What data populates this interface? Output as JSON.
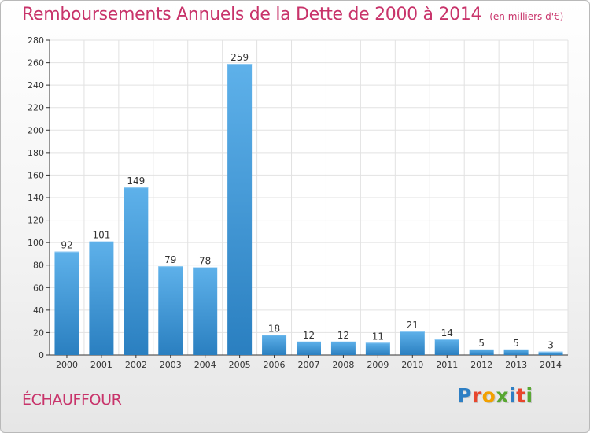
{
  "header": {
    "title": "Remboursements Annuels de la Dette de 2000 à 2014",
    "unit": "(en milliers d'€)"
  },
  "footer": {
    "commune": "ÉCHAUFFOUR",
    "logo_text": "Proxiti",
    "logo_letters": [
      {
        "ch": "P",
        "color": "#2e7fc4"
      },
      {
        "ch": "r",
        "color": "#e8462d"
      },
      {
        "ch": "o",
        "color": "#f2a100"
      },
      {
        "ch": "x",
        "color": "#58a731"
      },
      {
        "ch": "i",
        "color": "#2e7fc4"
      },
      {
        "ch": "t",
        "color": "#e8462d"
      },
      {
        "ch": "i",
        "color": "#58a731"
      }
    ]
  },
  "colors": {
    "title": "#c8336a",
    "bar_light": "#5eb1ea",
    "bar_dark": "#2a7fc0",
    "grid": "#e2e2e2",
    "axis": "#333333"
  },
  "chart_data": {
    "type": "bar",
    "categories": [
      "2000",
      "2001",
      "2002",
      "2003",
      "2004",
      "2005",
      "2006",
      "2007",
      "2008",
      "2009",
      "2010",
      "2011",
      "2012",
      "2013",
      "2014"
    ],
    "values": [
      92,
      101,
      149,
      79,
      78,
      259,
      18,
      12,
      12,
      11,
      21,
      14,
      5,
      5,
      3
    ],
    "title": "Remboursements Annuels de la Dette de 2000 à 2014",
    "ylim": [
      0,
      280
    ],
    "yticks": [
      0,
      20,
      40,
      60,
      80,
      100,
      120,
      140,
      160,
      180,
      200,
      220,
      240,
      260,
      280
    ],
    "data_labels": true,
    "grid": true
  }
}
